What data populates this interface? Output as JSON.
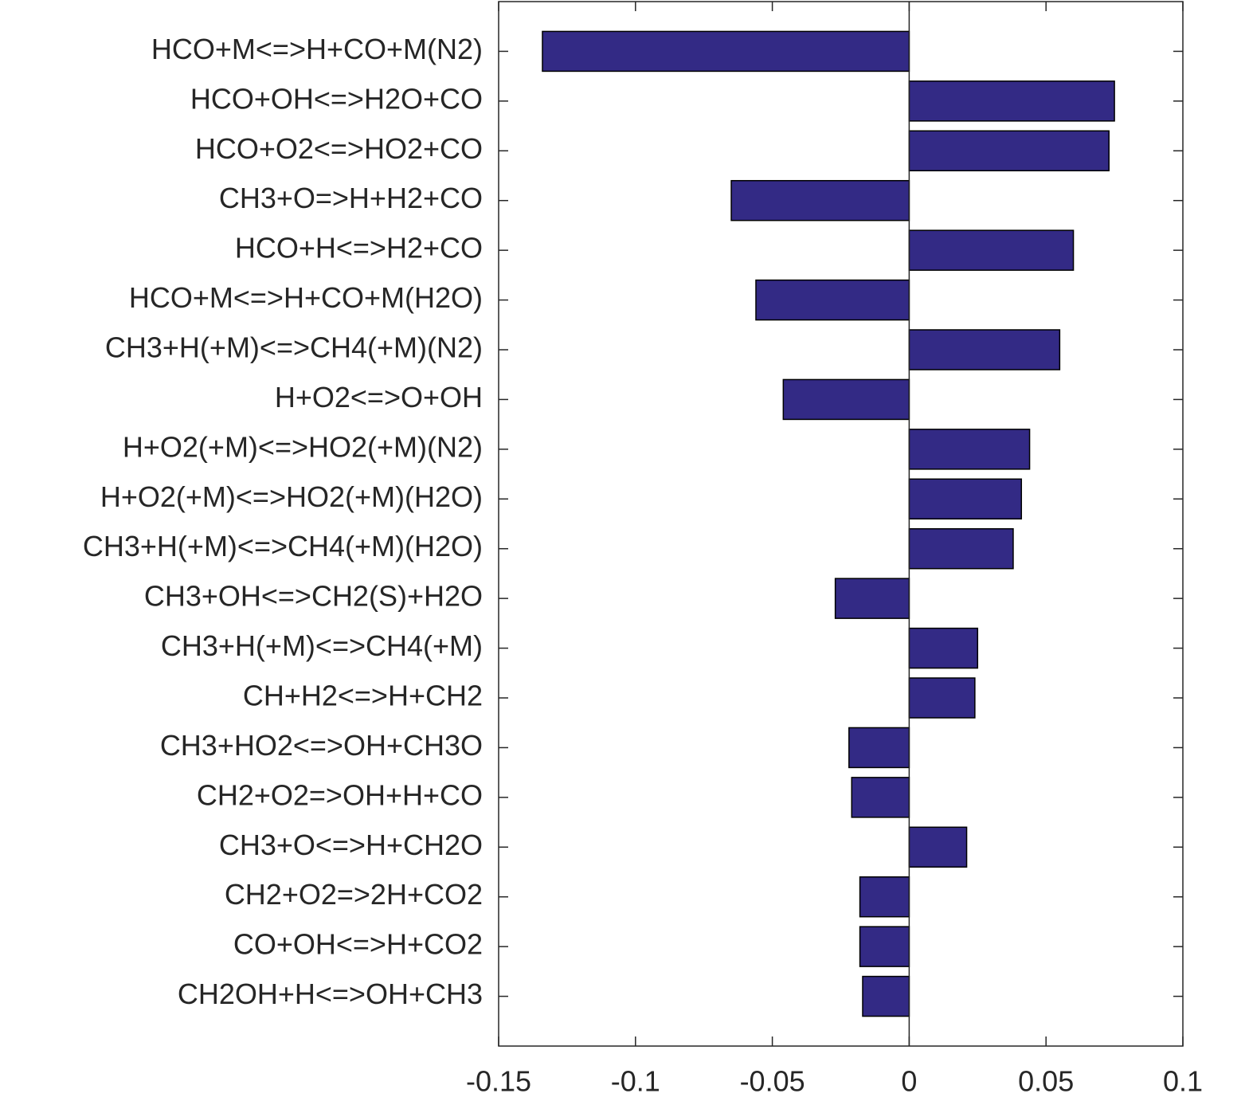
{
  "chart_data": {
    "type": "barh",
    "categories": [
      "HCO+M<=>H+CO+M(N2)",
      "HCO+OH<=>H2O+CO",
      "HCO+O2<=>HO2+CO",
      "CH3+O=>H+H2+CO",
      "HCO+H<=>H2+CO",
      "HCO+M<=>H+CO+M(H2O)",
      "CH3+H(+M)<=>CH4(+M)(N2)",
      "H+O2<=>O+OH",
      "H+O2(+M)<=>HO2(+M)(N2)",
      "H+O2(+M)<=>HO2(+M)(H2O)",
      "CH3+H(+M)<=>CH4(+M)(H2O)",
      "CH3+OH<=>CH2(S)+H2O",
      "CH3+H(+M)<=>CH4(+M)",
      "CH+H2<=>H+CH2",
      "CH3+HO2<=>OH+CH3O",
      "CH2+O2=>OH+H+CO",
      "CH3+O<=>H+CH2O",
      "CH2+O2=>2H+CO2",
      "CO+OH<=>H+CO2",
      "CH2OH+H<=>OH+CH3"
    ],
    "values": [
      -0.134,
      0.075,
      0.073,
      -0.065,
      0.06,
      -0.056,
      0.055,
      -0.046,
      0.044,
      0.041,
      0.038,
      -0.027,
      0.025,
      0.024,
      -0.022,
      -0.021,
      0.021,
      -0.018,
      -0.018,
      -0.017
    ],
    "color": "#332a85",
    "xlim": [
      -0.15,
      0.1
    ],
    "xticks": [
      -0.15,
      -0.1,
      -0.05,
      0,
      0.05,
      0.1
    ]
  }
}
